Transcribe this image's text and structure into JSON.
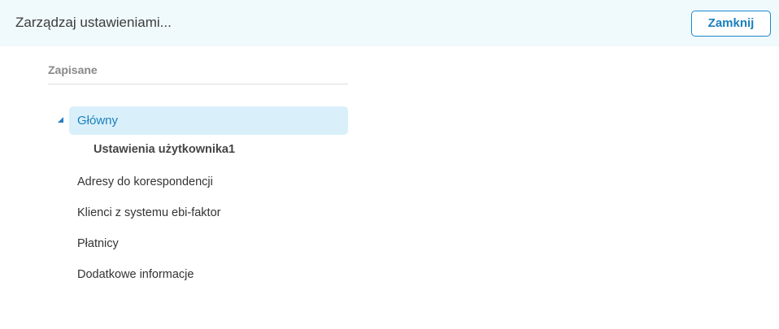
{
  "header": {
    "title": "Zarządzaj ustawieniami...",
    "close_label": "Zamknij"
  },
  "section": {
    "title": "Zapisane"
  },
  "tree": {
    "root": {
      "label": "Główny",
      "expanded": true,
      "selected": true,
      "children": [
        {
          "label": "Ustawienia użytkownika1"
        }
      ]
    },
    "items": [
      {
        "label": "Adresy do korespondencji"
      },
      {
        "label": "Klienci z systemu ebi-faktor"
      },
      {
        "label": "Płatnicy"
      },
      {
        "label": "Dodatkowe informacje"
      }
    ]
  },
  "colors": {
    "accent": "#1a7fbf",
    "header_bg": "#f0f9fc",
    "selected_bg": "#d9f0fa"
  }
}
